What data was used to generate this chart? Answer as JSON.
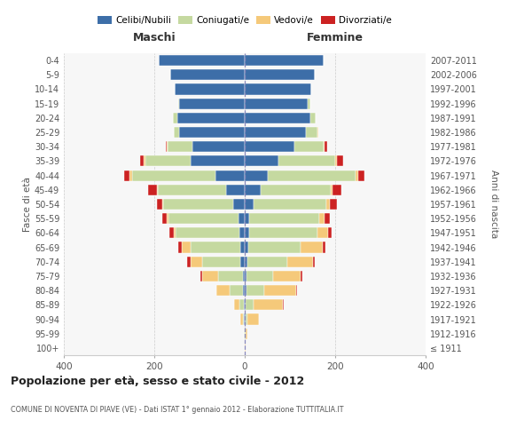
{
  "age_groups": [
    "100+",
    "95-99",
    "90-94",
    "85-89",
    "80-84",
    "75-79",
    "70-74",
    "65-69",
    "60-64",
    "55-59",
    "50-54",
    "45-49",
    "40-44",
    "35-39",
    "30-34",
    "25-29",
    "20-24",
    "15-19",
    "10-14",
    "5-9",
    "0-4"
  ],
  "birth_years": [
    "≤ 1911",
    "1912-1916",
    "1917-1921",
    "1922-1926",
    "1927-1931",
    "1932-1936",
    "1937-1941",
    "1942-1946",
    "1947-1951",
    "1952-1956",
    "1957-1961",
    "1962-1966",
    "1967-1971",
    "1972-1976",
    "1977-1981",
    "1982-1986",
    "1987-1991",
    "1992-1996",
    "1997-2001",
    "2002-2006",
    "2007-2011"
  ],
  "colors": {
    "celibi": "#3d6ea8",
    "coniugati": "#c5d9a0",
    "vedovi": "#f5c97a",
    "divorziati": "#cc2222"
  },
  "male": {
    "celibi": [
      0,
      0,
      1,
      2,
      3,
      4,
      10,
      10,
      12,
      14,
      25,
      42,
      65,
      120,
      115,
      145,
      150,
      145,
      155,
      165,
      190
    ],
    "coniugati": [
      0,
      1,
      3,
      9,
      30,
      55,
      85,
      110,
      140,
      155,
      155,
      150,
      185,
      100,
      55,
      12,
      8,
      2,
      0,
      0,
      0
    ],
    "vedovi": [
      0,
      0,
      5,
      12,
      30,
      35,
      25,
      20,
      5,
      3,
      3,
      3,
      5,
      3,
      2,
      0,
      0,
      0,
      0,
      0,
      0
    ],
    "divorziati": [
      0,
      0,
      0,
      0,
      0,
      5,
      8,
      8,
      10,
      10,
      12,
      18,
      12,
      8,
      3,
      0,
      0,
      0,
      0,
      0,
      0
    ]
  },
  "female": {
    "nubili": [
      0,
      0,
      1,
      2,
      3,
      3,
      5,
      8,
      10,
      10,
      20,
      35,
      50,
      75,
      110,
      135,
      145,
      140,
      148,
      155,
      175
    ],
    "coniugate": [
      0,
      2,
      5,
      18,
      40,
      60,
      90,
      115,
      150,
      155,
      160,
      155,
      195,
      125,
      65,
      25,
      12,
      5,
      0,
      0,
      0
    ],
    "vedove": [
      1,
      3,
      25,
      65,
      70,
      60,
      55,
      50,
      25,
      12,
      8,
      5,
      5,
      3,
      2,
      2,
      0,
      0,
      0,
      0,
      0
    ],
    "divorziate": [
      0,
      0,
      0,
      2,
      3,
      5,
      5,
      5,
      8,
      12,
      15,
      18,
      15,
      15,
      5,
      0,
      0,
      0,
      0,
      0,
      0
    ]
  },
  "xlim": 400,
  "title": "Popolazione per età, sesso e stato civile - 2012",
  "subtitle": "COMUNE DI NOVENTA DI PIAVE (VE) - Dati ISTAT 1° gennaio 2012 - Elaborazione TUTTITALIA.IT",
  "ylabel_left": "Fasce di età",
  "ylabel_right": "Anni di nascita",
  "xlabel_left": "Maschi",
  "xlabel_right": "Femmine"
}
